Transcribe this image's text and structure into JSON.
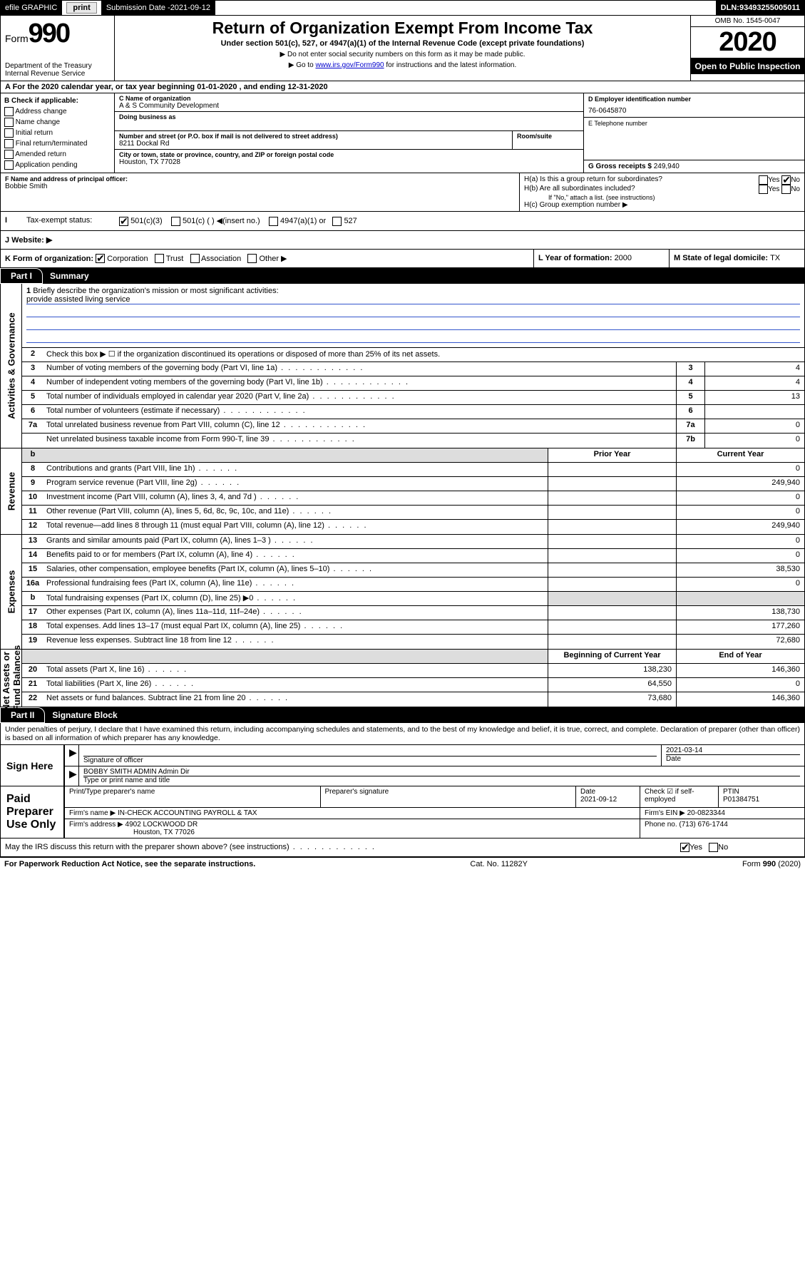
{
  "topbar": {
    "efile": "efile GRAPHIC",
    "print_btn": "print",
    "sub_label": "Submission Date - ",
    "sub_date": "2021-09-12",
    "dln_label": "DLN: ",
    "dln": "93493255005011"
  },
  "header": {
    "form_word": "Form",
    "form_num": "990",
    "dept": "Department of the Treasury\nInternal Revenue Service",
    "title": "Return of Organization Exempt From Income Tax",
    "subtitle": "Under section 501(c), 527, or 4947(a)(1) of the Internal Revenue Code (except private foundations)",
    "note1": "▶ Do not enter social security numbers on this form as it may be made public.",
    "note2_pre": "▶ Go to ",
    "note2_link": "www.irs.gov/Form990",
    "note2_post": " for instructions and the latest information.",
    "omb": "OMB No. 1545-0047",
    "year": "2020",
    "open": "Open to Public Inspection"
  },
  "row_a": {
    "text": "A For the 2020 calendar year, or tax year beginning 01-01-2020   , and ending 12-31-2020"
  },
  "box_b": {
    "heading": "B Check if applicable:",
    "items": [
      "Address change",
      "Name change",
      "Initial return",
      "Final return/terminated",
      "Amended return",
      "Application pending"
    ]
  },
  "box_c": {
    "name_label": "C Name of organization",
    "name": "A & S Community Development",
    "dba_label": "Doing business as",
    "addr_label": "Number and street (or P.O. box if mail is not delivered to street address)",
    "room_label": "Room/suite",
    "addr": "8211 Dockal Rd",
    "city_label": "City or town, state or province, country, and ZIP or foreign postal code",
    "city": "Houston, TX  77028"
  },
  "box_d": {
    "label": "D Employer identification number",
    "value": "76-0645870"
  },
  "box_e": {
    "label": "E Telephone number",
    "value": ""
  },
  "box_g": {
    "label": "G Gross receipts $ ",
    "value": "249,940"
  },
  "box_f": {
    "label": "F  Name and address of principal officer:",
    "value": "Bobbie Smith"
  },
  "box_h": {
    "a": "H(a)  Is this a group return for subordinates?",
    "b": "H(b)  Are all subordinates included?",
    "b_note": "If \"No,\" attach a list. (see instructions)",
    "c": "H(c)  Group exemption number ▶",
    "yes": "Yes",
    "no": "No"
  },
  "row_i": {
    "label": "Tax-exempt status:",
    "opts": [
      "501(c)(3)",
      "501(c) (  ) ◀(insert no.)",
      "4947(a)(1) or",
      "527"
    ]
  },
  "row_j": {
    "label": "J   Website: ▶"
  },
  "row_k": {
    "k": "K Form of organization:",
    "opts": [
      "Corporation",
      "Trust",
      "Association",
      "Other ▶"
    ],
    "l": "L Year of formation: ",
    "l_val": "2000",
    "m": "M State of legal domicile: ",
    "m_val": "TX"
  },
  "part1": {
    "num": "Part I",
    "title": "Summary"
  },
  "summary": {
    "q1": "Briefly describe the organization's mission or most significant activities:",
    "q1_answer": "provide assisted living service",
    "q2": "Check this box ▶ ☐  if the organization discontinued its operations or disposed of more than 25% of its net assets.",
    "lines_governance": [
      {
        "n": "3",
        "t": "Number of voting members of the governing body (Part VI, line 1a)",
        "box": "3",
        "v": "4"
      },
      {
        "n": "4",
        "t": "Number of independent voting members of the governing body (Part VI, line 1b)",
        "box": "4",
        "v": "4"
      },
      {
        "n": "5",
        "t": "Total number of individuals employed in calendar year 2020 (Part V, line 2a)",
        "box": "5",
        "v": "13"
      },
      {
        "n": "6",
        "t": "Total number of volunteers (estimate if necessary)",
        "box": "6",
        "v": ""
      },
      {
        "n": "7a",
        "t": "Total unrelated business revenue from Part VIII, column (C), line 12",
        "box": "7a",
        "v": "0"
      },
      {
        "n": "",
        "t": "Net unrelated business taxable income from Form 990-T, line 39",
        "box": "7b",
        "v": "0"
      }
    ],
    "col_prior": "Prior Year",
    "col_current": "Current Year",
    "lines_revenue": [
      {
        "n": "8",
        "t": "Contributions and grants (Part VIII, line 1h)",
        "p": "",
        "c": "0"
      },
      {
        "n": "9",
        "t": "Program service revenue (Part VIII, line 2g)",
        "p": "",
        "c": "249,940"
      },
      {
        "n": "10",
        "t": "Investment income (Part VIII, column (A), lines 3, 4, and 7d )",
        "p": "",
        "c": "0"
      },
      {
        "n": "11",
        "t": "Other revenue (Part VIII, column (A), lines 5, 6d, 8c, 9c, 10c, and 11e)",
        "p": "",
        "c": "0"
      },
      {
        "n": "12",
        "t": "Total revenue—add lines 8 through 11 (must equal Part VIII, column (A), line 12)",
        "p": "",
        "c": "249,940"
      }
    ],
    "lines_expenses": [
      {
        "n": "13",
        "t": "Grants and similar amounts paid (Part IX, column (A), lines 1–3 )",
        "p": "",
        "c": "0"
      },
      {
        "n": "14",
        "t": "Benefits paid to or for members (Part IX, column (A), line 4)",
        "p": "",
        "c": "0"
      },
      {
        "n": "15",
        "t": "Salaries, other compensation, employee benefits (Part IX, column (A), lines 5–10)",
        "p": "",
        "c": "38,530"
      },
      {
        "n": "16a",
        "t": "Professional fundraising fees (Part IX, column (A), line 11e)",
        "p": "",
        "c": "0"
      },
      {
        "n": "b",
        "t": "Total fundraising expenses (Part IX, column (D), line 25) ▶0",
        "p": "SHADE",
        "c": "SHADE"
      },
      {
        "n": "17",
        "t": "Other expenses (Part IX, column (A), lines 11a–11d, 11f–24e)",
        "p": "",
        "c": "138,730"
      },
      {
        "n": "18",
        "t": "Total expenses. Add lines 13–17 (must equal Part IX, column (A), line 25)",
        "p": "",
        "c": "177,260"
      },
      {
        "n": "19",
        "t": "Revenue less expenses. Subtract line 18 from line 12",
        "p": "",
        "c": "72,680"
      }
    ],
    "col_begin": "Beginning of Current Year",
    "col_end": "End of Year",
    "lines_net": [
      {
        "n": "20",
        "t": "Total assets (Part X, line 16)",
        "p": "138,230",
        "c": "146,360"
      },
      {
        "n": "21",
        "t": "Total liabilities (Part X, line 26)",
        "p": "64,550",
        "c": "0"
      },
      {
        "n": "22",
        "t": "Net assets or fund balances. Subtract line 21 from line 20",
        "p": "73,680",
        "c": "146,360"
      }
    ]
  },
  "part2": {
    "num": "Part II",
    "title": "Signature Block"
  },
  "perjury": "Under penalties of perjury, I declare that I have examined this return, including accompanying schedules and statements, and to the best of my knowledge and belief, it is true, correct, and complete. Declaration of preparer (other than officer) is based on all information of which preparer has any knowledge.",
  "sign_here": {
    "label": "Sign Here",
    "sig_label": "Signature of officer",
    "date": "2021-03-14",
    "date_label": "Date",
    "name": "BOBBY SMITH ADMIN  Admin Dir",
    "name_label": "Type or print name and title"
  },
  "paid_prep": {
    "label": "Paid Preparer Use Only",
    "col1": "Print/Type preparer's name",
    "col2": "Preparer's signature",
    "col3": "Date",
    "col3_val": "2021-09-12",
    "col4": "Check ☑ if self-employed",
    "col5": "PTIN",
    "col5_val": "P01384751",
    "firm_name_label": "Firm's name    ▶ ",
    "firm_name": "IN-CHECK ACCOUNTING PAYROLL & TAX",
    "firm_ein_label": "Firm's EIN ▶ ",
    "firm_ein": "20-0823344",
    "firm_addr_label": "Firm's address ▶ ",
    "firm_addr": "4902 LOCKWOOD DR",
    "firm_city": "Houston, TX  77026",
    "phone_label": "Phone no. ",
    "phone": "(713) 676-1744"
  },
  "discuss": {
    "q": "May the IRS discuss this return with the preparer shown above? (see instructions)",
    "yes": "Yes",
    "no": "No"
  },
  "footer": {
    "left": "For Paperwork Reduction Act Notice, see the separate instructions.",
    "mid": "Cat. No. 11282Y",
    "right": "Form 990 (2020)"
  }
}
